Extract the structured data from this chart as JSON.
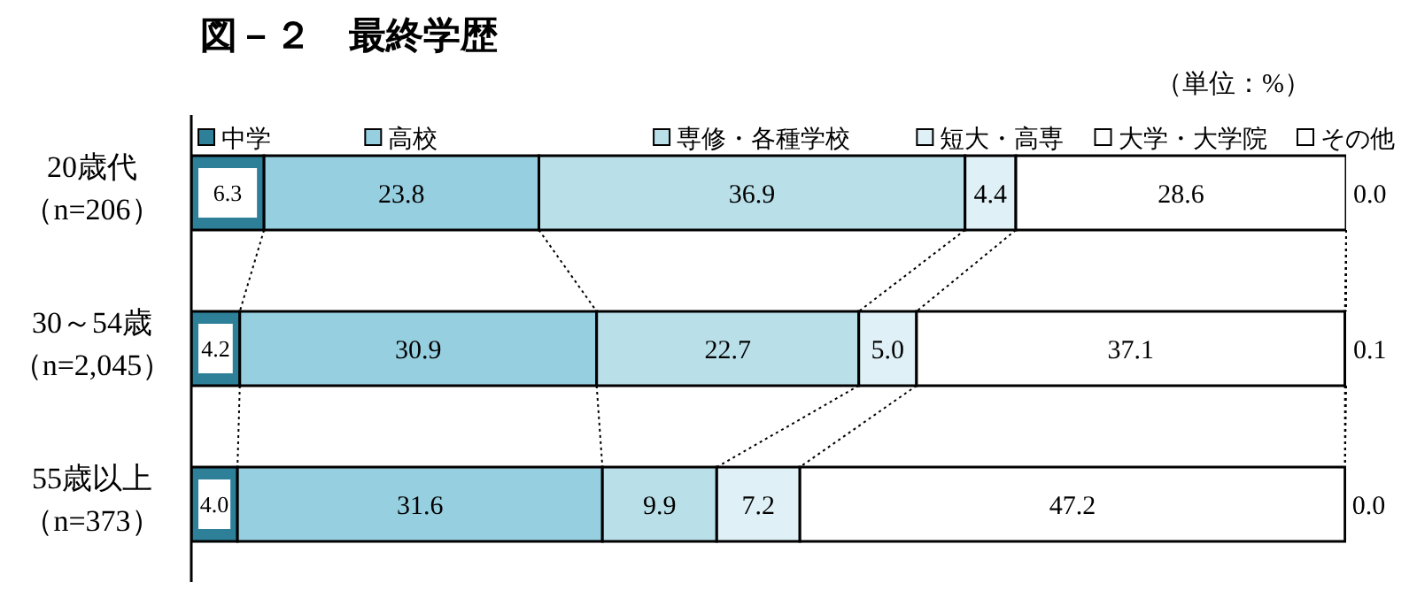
{
  "chart_data": {
    "type": "bar",
    "orientation": "horizontal",
    "stacked": true,
    "title": "図－２　最終学歴",
    "annotations": [
      "（単位：%）"
    ],
    "legend": "top",
    "categories": [
      "20歳代（n=206）",
      "30～54歳（n=2,045）",
      "55歳以上（n=373）"
    ],
    "series": [
      {
        "name": "中学",
        "color": "#2e7f98",
        "values": [
          6.3,
          4.2,
          4.0
        ],
        "value_labels": [
          "6.3",
          "4.2",
          "4.0"
        ]
      },
      {
        "name": "高校",
        "color": "#96cfe0",
        "values": [
          23.8,
          30.9,
          31.6
        ],
        "value_labels": [
          "23.8",
          "30.9",
          "31.6"
        ]
      },
      {
        "name": "専修・各種学校",
        "color": "#b9dfe9",
        "values": [
          36.9,
          22.7,
          9.9
        ],
        "value_labels": [
          "36.9",
          "22.7",
          "9.9"
        ]
      },
      {
        "name": "短大・高専",
        "color": "#dff0f6",
        "values": [
          4.4,
          5.0,
          7.2
        ],
        "value_labels": [
          "4.4",
          "5.0",
          "7.2"
        ]
      },
      {
        "name": "大学・大学院",
        "color": "#ffffff",
        "values": [
          28.6,
          37.1,
          47.2
        ],
        "value_labels": [
          "28.6",
          "37.1",
          "47.2"
        ]
      },
      {
        "name": "その他",
        "color": "#ffffff",
        "values": [
          0.0,
          0.1,
          0.0
        ],
        "value_labels": [
          "0.0",
          "0.1",
          "0.0"
        ]
      }
    ]
  }
}
